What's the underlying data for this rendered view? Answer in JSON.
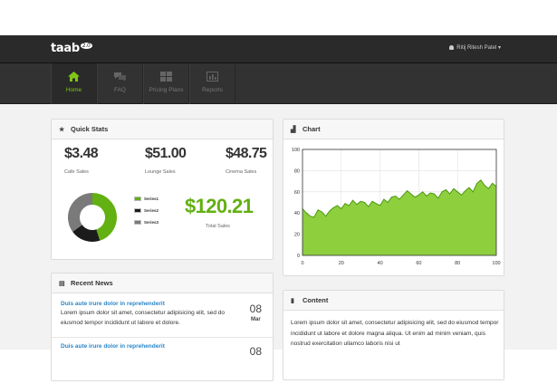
{
  "brand": {
    "logo_text": "taab",
    "logo_badge": "2.0"
  },
  "user": {
    "name": "Ritij Ritesh Patel",
    "caret": "▾"
  },
  "nav": {
    "items": [
      {
        "label": "Home",
        "icon": "home-icon",
        "active": true
      },
      {
        "label": "FAQ",
        "icon": "faq-icon",
        "active": false
      },
      {
        "label": "Pricing Plans",
        "icon": "pricing-grid-icon",
        "active": false
      },
      {
        "label": "Reports",
        "icon": "reports-chart-icon",
        "active": false
      }
    ]
  },
  "quick_stats": {
    "title": "Quick Stats",
    "stats": [
      {
        "value": "$3.48",
        "label": "Cafe Sales"
      },
      {
        "value": "$51.00",
        "label": "Lounge Sales"
      },
      {
        "value": "$48.75",
        "label": "Cinema Sales"
      }
    ],
    "legend": [
      {
        "label": "Series1",
        "color": "#62b012"
      },
      {
        "label": "Series2",
        "color": "#1b1b1b"
      },
      {
        "label": "Series3",
        "color": "#7a7a7a"
      }
    ],
    "total_value": "$120.21",
    "total_label": "Total Sales"
  },
  "chart_panel": {
    "title": "Chart"
  },
  "recent_news": {
    "title": "Recent News",
    "items": [
      {
        "title": "Duis aute irure dolor in reprehenderit",
        "text": "Lorem ipsum dolor sit amet, consectetur adipisicing elit, sed do eiusmod tempor incididunt ut labore et dolore.",
        "day": "08",
        "month": "Mar"
      },
      {
        "title": "Duis aute irure dolor in reprehenderit",
        "text": "",
        "day": "08",
        "month": ""
      }
    ]
  },
  "content_panel": {
    "title": "Content",
    "text": "Lorem ipsum dolor sit amet, consectetur adipisicing elit, sed do eiusmod tempor incididunt ut labore et dolore magna aliqua. Ut enim ad minim veniam, quis nostrud exercitation ullamco laboris nisi ut"
  },
  "chart_data": [
    {
      "type": "pie",
      "categories": [
        "Series1",
        "Series2",
        "Series3"
      ],
      "values": [
        45,
        20,
        35
      ],
      "colors": [
        "#62b012",
        "#1b1b1b",
        "#7a7a7a"
      ],
      "donut": true
    },
    {
      "type": "area",
      "x": [
        0,
        2,
        4,
        6,
        8,
        10,
        12,
        14,
        16,
        18,
        20,
        22,
        24,
        26,
        28,
        30,
        32,
        34,
        36,
        38,
        40,
        42,
        44,
        46,
        48,
        50,
        52,
        54,
        56,
        58,
        60,
        62,
        64,
        66,
        68,
        70,
        72,
        74,
        76,
        78,
        80,
        82,
        84,
        86,
        88,
        90,
        92,
        94,
        96,
        98,
        100
      ],
      "y": [
        44,
        40,
        37,
        36,
        43,
        41,
        37,
        42,
        45,
        47,
        44,
        49,
        47,
        52,
        48,
        51,
        50,
        46,
        51,
        49,
        47,
        53,
        50,
        55,
        56,
        53,
        57,
        61,
        58,
        55,
        57,
        60,
        56,
        59,
        58,
        54,
        60,
        62,
        58,
        63,
        60,
        57,
        61,
        64,
        60,
        68,
        71,
        66,
        63,
        68,
        65
      ],
      "xlim": [
        0,
        100
      ],
      "ylim": [
        0,
        100
      ],
      "xticks": [
        0,
        20,
        40,
        60,
        80,
        100
      ],
      "yticks": [
        0,
        20,
        40,
        60,
        80,
        100
      ],
      "grid": true,
      "fill_color": "#8ecf3e",
      "line_color": "#4d9a10"
    }
  ]
}
